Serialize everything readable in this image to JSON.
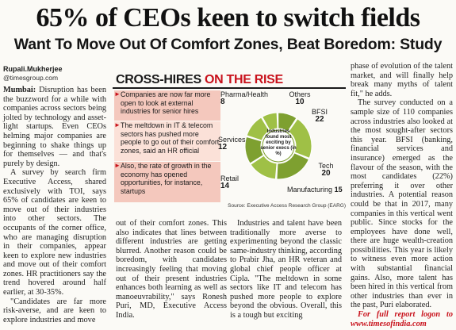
{
  "headline": "65% of CEOs keen to switch fields",
  "subhead": "Want To Move Out Of Comfort Zones, Beat Boredom: Study",
  "byline": {
    "name": "Rupali.Mukherjee",
    "handle": "@timesgroup.com"
  },
  "graphic": {
    "title_main": "CROSS-HIRES ",
    "title_highlight": "ON THE RISE",
    "facts": [
      "Companies are now far more open to look at external industries for senior hires",
      "The meltdown in IT & telecom sectors has pushed more people to go out of their comfort zones, said an HR official",
      "Also, the rate of growth in the economy has opened opportunities, for instance, startups"
    ],
    "hub_label": "Industries found most exciting by senior execs (in %)",
    "source": "Source: Executive Access Research Group (EARG)",
    "colors": {
      "highlight": "#c8111b",
      "wheel_segment": "#9fc046",
      "wheel_dark": "#7ea030",
      "fact_bg": "#f4c8bd"
    }
  },
  "chart_data": {
    "type": "pie",
    "title": "Industries found most exciting by senior execs (in %)",
    "categories": [
      "Pharma/Health",
      "Others",
      "BFSI",
      "Tech",
      "Manufacturing",
      "Retail",
      "Services"
    ],
    "values": [
      8,
      10,
      22,
      20,
      15,
      14,
      12
    ],
    "unit": "%"
  },
  "columns": {
    "c1": [
      {
        "kicker": "Mumbai:",
        "text": " Disruption has been the buzzword for a while with companies across sectors being jolted by technology and asset-light startups. Even CEOs helming major companies are beginning to shake things up for themselves — and that's purely by design."
      },
      {
        "text": "A survey by search firm Executive Access, shared exclusively with TOI, says 65% of candidates are keen to move out of their industries into other sectors. The occupants of the corner office, who are managing disruption in their companies, appear keen to explore new industries and move out of their comfort zones. HR practitioners say the trend hovered around half earlier, at 30-35%."
      },
      {
        "text": "\"Candidates are far more risk-averse, and are keen to explore industries and move"
      }
    ],
    "c2": [
      {
        "text": "out of their comfort zones. This also indicates that lines between different industries are getting blurred. Another reason could be boredom, with candidates increasingly feeling that moving out of their present industries enhances both learning as well as manoeuvrability,\" says Ronesh Puri, MD, Executive Access India."
      }
    ],
    "c3": [
      {
        "text": "Industries and talent have been traditionally more averse to experimenting beyond the classic same-industry thinking, according to Prabir Jha, an HR veteran and global chief people officer at Cipla. \"The meltdown in some sectors like IT and telecom has pushed more people to explore beyond the obvious. Overall, this is a tough but exciting"
      }
    ],
    "c4": [
      {
        "text": "phase of evolution of the talent market, and will finally help break many myths of talent fit,\" he adds."
      },
      {
        "text": "The survey conducted on a sample size of 110 companies across industries also looked at the most sought-after sectors this year. BFSI (banking, financial services and insurance) emerged as the flavour of the season, with the most candidates (22%) preferring it over other industries. A potential reason could be that in 2017, many companies in this vertical went public. Since stocks for the employees have done well, there are huge wealth-creation possibilities. This year is likely to witness even more action with substantial financial gains. Also, more talent has been hired in this vertical from other industries than ever in the past, Puri elaborated."
      }
    ],
    "promo": "For full report logon to www.timesofindia.com"
  }
}
